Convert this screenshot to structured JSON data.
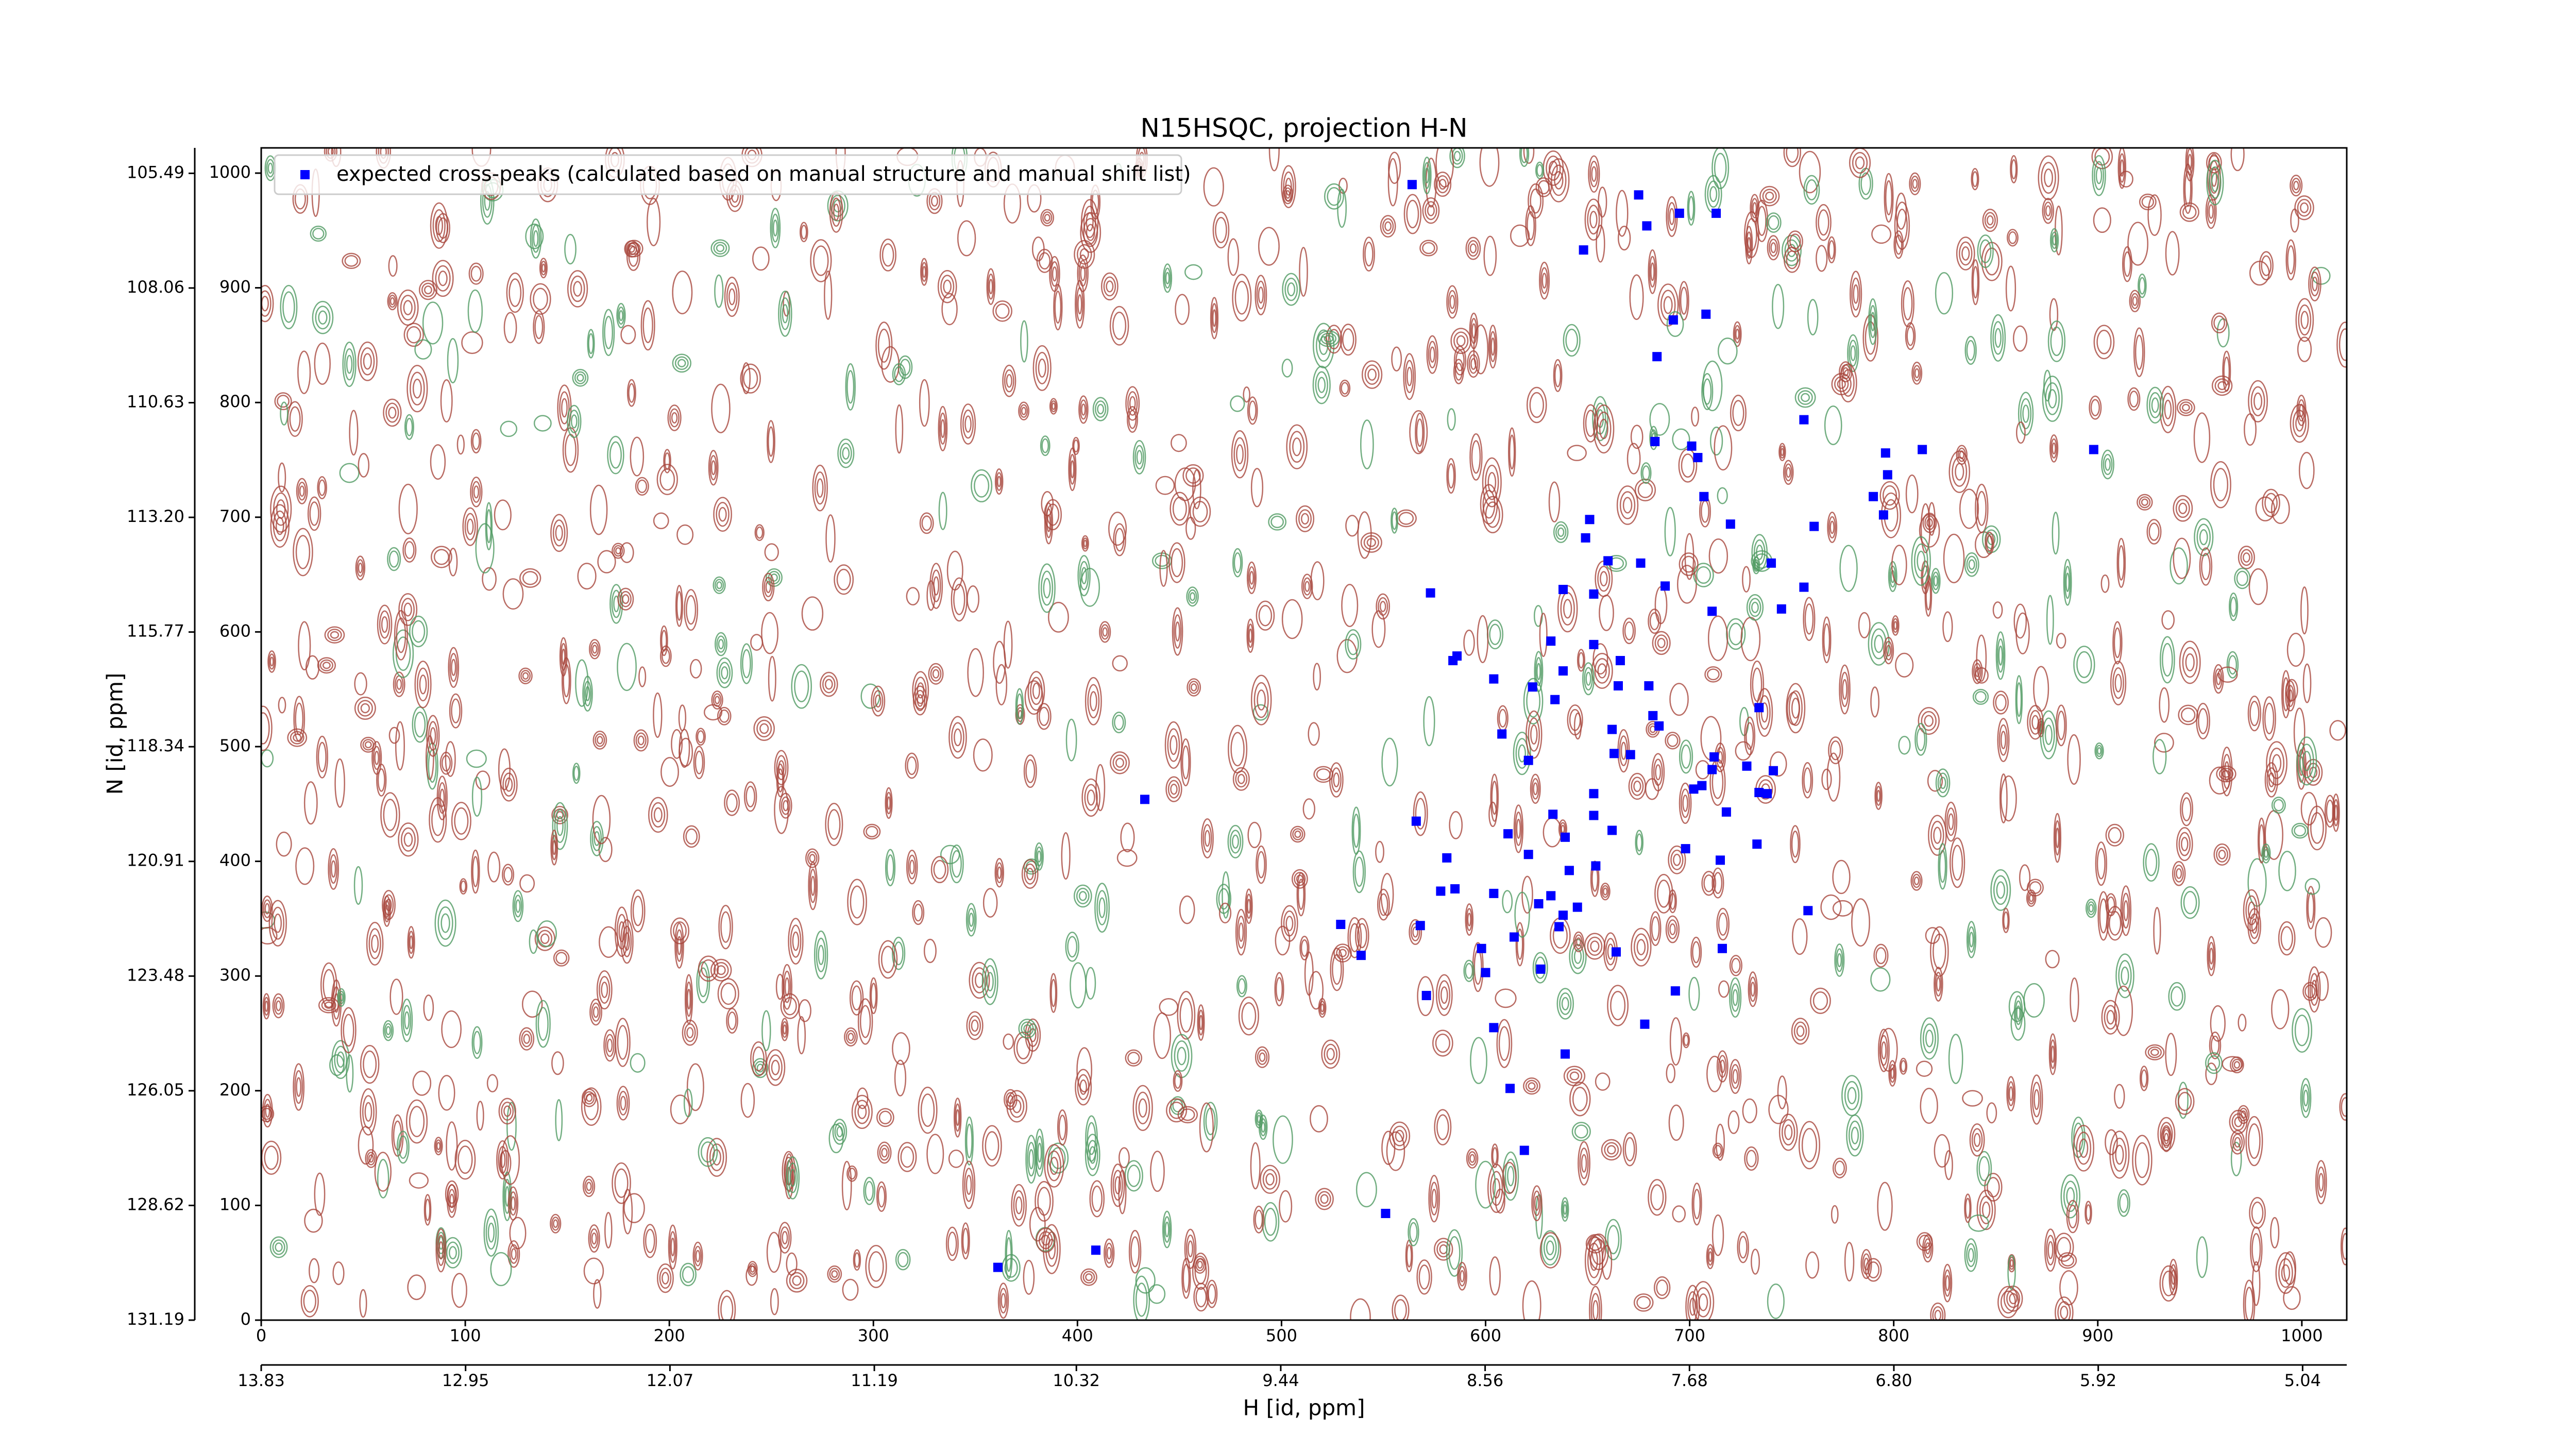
{
  "chart_data": {
    "type": "scatter",
    "title": "N15HSQC, projection H-N",
    "xlabel": "H [id, ppm]",
    "ylabel": "N [id, ppm]",
    "xlim": [
      0,
      1022
    ],
    "xticks": [
      0,
      100,
      200,
      300,
      400,
      500,
      600,
      700,
      800,
      900,
      1000
    ],
    "ylim": [
      0,
      1022
    ],
    "yticks": [
      0,
      100,
      200,
      300,
      400,
      500,
      600,
      700,
      800,
      900,
      1000
    ],
    "x2lim": [
      13.83,
      4.85
    ],
    "x2ticks": [
      13.83,
      12.95,
      12.07,
      11.19,
      10.32,
      9.44,
      8.56,
      7.68,
      {
        "value": 6.8,
        "label": "6.80"
      },
      5.92,
      5.04
    ],
    "y2lim": [
      131.19,
      104.92
    ],
    "y2ticks": [
      131.19,
      128.62,
      126.05,
      123.48,
      120.91,
      118.34,
      115.77,
      {
        "value": 113.2,
        "label": "113.20"
      },
      110.63,
      108.06,
      105.49
    ],
    "legend": "upper left",
    "series": [
      {
        "name": "expected cross-peaks (calculated based on manual structure and manual shift list)",
        "color": "#0000ff",
        "x": [
          564,
          675,
          679,
          695,
          713,
          648,
          692,
          708,
          684,
          756,
          898,
          683,
          701,
          704,
          796,
          814,
          797,
          790,
          795,
          707,
          720,
          761,
          651,
          649,
          660,
          676,
          688,
          740,
          638,
          653,
          573,
          756,
          711,
          745,
          632,
          653,
          586,
          584,
          666,
          638,
          604,
          623,
          665,
          680,
          634,
          734,
          662,
          682,
          685,
          608,
          663,
          671,
          621,
          712,
          711,
          728,
          741,
          702,
          706,
          734,
          738,
          653,
          433,
          653,
          633,
          718,
          566,
          639,
          611,
          662,
          733,
          698,
          581,
          715,
          654,
          641,
          621,
          604,
          578,
          585,
          632,
          626,
          638,
          645,
          636,
          529,
          568,
          758,
          614,
          539,
          598,
          664,
          716,
          600,
          627,
          693,
          571,
          604,
          678,
          639,
          612,
          619,
          551,
          409,
          361
        ],
        "values": [
          990,
          981,
          954,
          965,
          965,
          933,
          872,
          877,
          840,
          785,
          759,
          766,
          762,
          752,
          756,
          759,
          737,
          718,
          702,
          718,
          694,
          692,
          698,
          682,
          662,
          660,
          640,
          660,
          637,
          633,
          634,
          639,
          618,
          620,
          592,
          589,
          579,
          575,
          575,
          566,
          559,
          552,
          553,
          553,
          541,
          534,
          515,
          527,
          518,
          511,
          494,
          493,
          488,
          491,
          480,
          483,
          479,
          463,
          466,
          460,
          459,
          459,
          454,
          440,
          441,
          443,
          435,
          421,
          424,
          427,
          415,
          411,
          403,
          401,
          396,
          392,
          406,
          372,
          374,
          376,
          370,
          363,
          353,
          360,
          343,
          345,
          344,
          357,
          334,
          318,
          324,
          321,
          324,
          303,
          306,
          287,
          283,
          255,
          258,
          232,
          202,
          148,
          93,
          61,
          46
        ]
      }
    ]
  }
}
